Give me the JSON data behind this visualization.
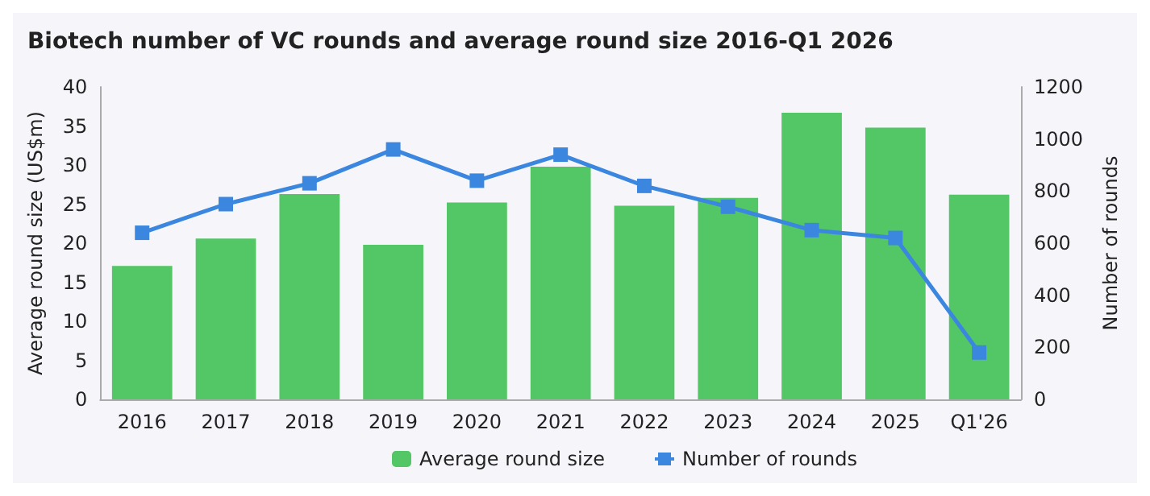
{
  "chart_data": {
    "type": "bar",
    "title": "Biotech number of VC rounds and average round size 2016-Q1 2026",
    "categories": [
      "2016",
      "2017",
      "2018",
      "2019",
      "2020",
      "2021",
      "2022",
      "2023",
      "2024",
      "2025",
      "Q1'26"
    ],
    "series": [
      {
        "name": "Average round size",
        "color": "#53c665",
        "values": [
          17.1,
          20.6,
          26.3,
          19.8,
          25.2,
          29.8,
          24.8,
          25.8,
          36.7,
          34.8,
          26.2
        ]
      },
      {
        "name": "Number of rounds",
        "type": "line",
        "axis": "y2",
        "color": "#3b87e0",
        "marker": "square",
        "values": [
          640,
          750,
          830,
          960,
          840,
          940,
          820,
          740,
          650,
          620,
          180
        ]
      }
    ],
    "ylabel": "Average round size (US$m)",
    "y2label": "Number of rounds",
    "ylim": [
      0,
      40
    ],
    "yticks": [
      0,
      5,
      10,
      15,
      20,
      25,
      30,
      35,
      40
    ],
    "y2lim": [
      0,
      1200
    ],
    "y2ticks": [
      0,
      200,
      400,
      600,
      800,
      1000,
      1200
    ],
    "grid": false,
    "legend": "bottom"
  }
}
